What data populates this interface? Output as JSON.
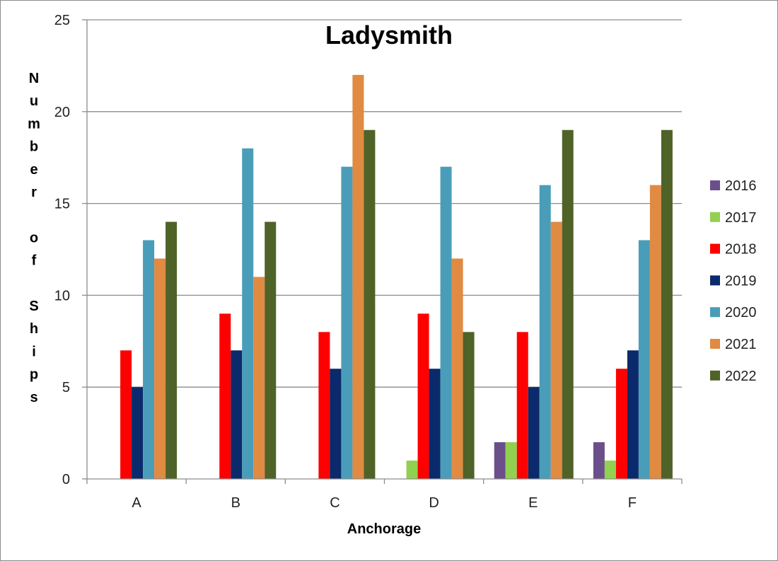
{
  "chart_data": {
    "type": "bar",
    "title": "Ladysmith",
    "xlabel": "Anchorage",
    "ylabel": "Number of Ships",
    "categories": [
      "A",
      "B",
      "C",
      "D",
      "E",
      "F"
    ],
    "ylim": [
      0,
      25
    ],
    "yticks": [
      0,
      5,
      10,
      15,
      20,
      25
    ],
    "grid": true,
    "legend_position": "right",
    "series": [
      {
        "name": "2016",
        "color": "#6b4f8b",
        "values": [
          0,
          0,
          0,
          0,
          2,
          2
        ]
      },
      {
        "name": "2017",
        "color": "#92d050",
        "values": [
          0,
          0,
          0,
          1,
          2,
          1
        ]
      },
      {
        "name": "2018",
        "color": "#ff0000",
        "values": [
          7,
          9,
          8,
          9,
          8,
          6
        ]
      },
      {
        "name": "2019",
        "color": "#0b2a6b",
        "values": [
          5,
          7,
          6,
          6,
          5,
          7
        ]
      },
      {
        "name": "2020",
        "color": "#4a9db8",
        "values": [
          13,
          18,
          17,
          17,
          16,
          13
        ]
      },
      {
        "name": "2021",
        "color": "#e08a42",
        "values": [
          12,
          11,
          22,
          12,
          14,
          16
        ]
      },
      {
        "name": "2022",
        "color": "#4f6228",
        "values": [
          14,
          14,
          19,
          8,
          19,
          19
        ]
      }
    ]
  }
}
